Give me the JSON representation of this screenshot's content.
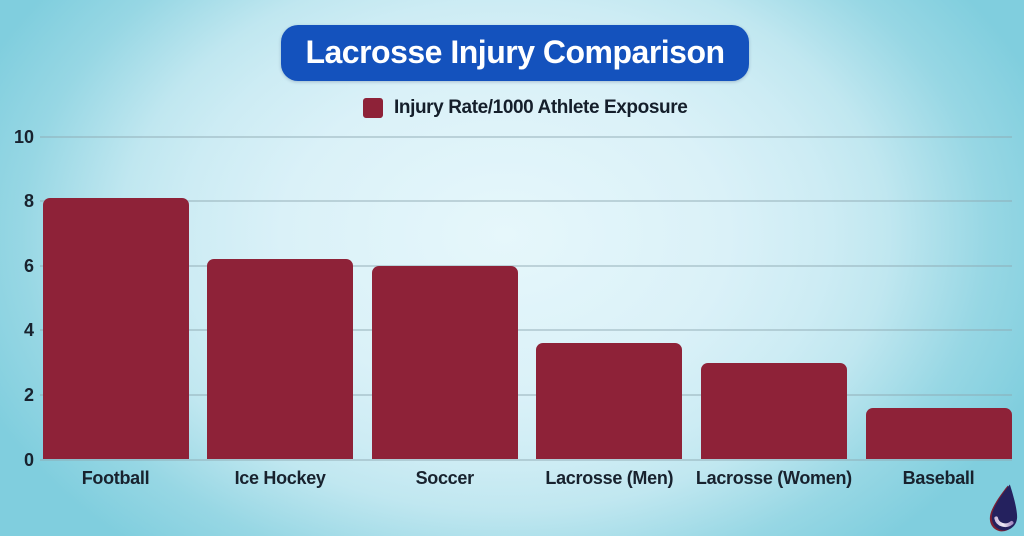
{
  "header": {
    "title": "Lacrosse Injury Comparison",
    "pill_color": "#1452bd",
    "title_text_color": "#ffffff"
  },
  "legend": {
    "label": "Injury Rate/1000 Athlete Exposure",
    "swatch_color": "#8e2238"
  },
  "chart_data": {
    "type": "bar",
    "title": "Lacrosse Injury Comparison",
    "categories": [
      "Football",
      "Ice Hockey",
      "Soccer",
      "Lacrosse (Men)",
      "Lacrosse (Women)",
      "Baseball"
    ],
    "values": [
      8.1,
      6.2,
      6.0,
      3.6,
      3.0,
      1.6
    ],
    "series_name": "Injury Rate/1000 Athlete Exposure",
    "xlabel": "",
    "ylabel": "",
    "ylim": [
      0,
      10
    ],
    "yticks": [
      0,
      2,
      4,
      6,
      8,
      10
    ],
    "grid": true,
    "bar_color": "#8e2238",
    "legend_position": "top-center",
    "background_color": "#bce6f0"
  },
  "logo": {
    "name": "water-drop",
    "body_color": "#24215e",
    "rim_color": "#7c2134",
    "highlight_color": "#efeaf6"
  }
}
